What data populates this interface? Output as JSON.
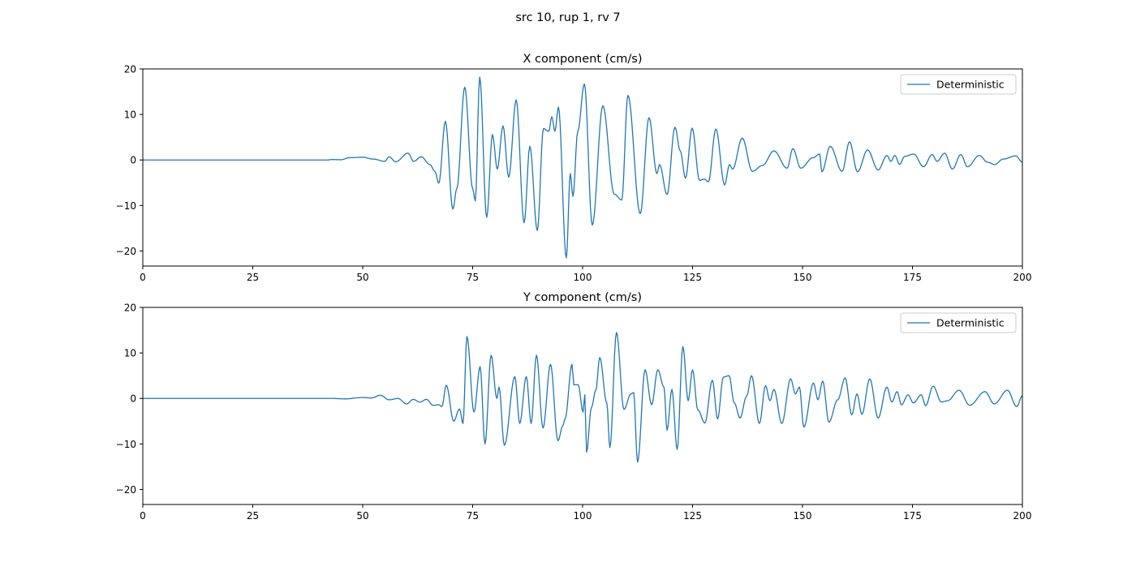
{
  "chart_data": {
    "suptitle": "src 10, rup 1, rv 7",
    "line_color": "#1f77b4",
    "subplots": [
      {
        "type": "line",
        "title": "X component (cm/s)",
        "xlim": [
          0,
          200
        ],
        "ylim": [
          -23.3,
          20
        ],
        "xticks": [
          0,
          25,
          50,
          75,
          100,
          125,
          150,
          175,
          200
        ],
        "yticks": [
          -20,
          -10,
          0,
          10,
          20
        ],
        "legend": {
          "placement": "top-right",
          "entries": [
            "Deterministic"
          ]
        },
        "series": [
          {
            "name": "Deterministic",
            "points": [
              [
                0,
                0
              ],
              [
                42,
                0
              ],
              [
                43,
                0.1
              ],
              [
                45,
                0.05
              ],
              [
                47,
                0.5
              ],
              [
                50,
                0.6
              ],
              [
                52.4,
                0.2
              ],
              [
                55,
                -0.3
              ],
              [
                56,
                0.7
              ],
              [
                57.5,
                -0.4
              ],
              [
                60.3,
                1.5
              ],
              [
                61.6,
                -0.3
              ],
              [
                63.3,
                0.7
              ],
              [
                65.3,
                -1
              ],
              [
                66.4,
                -2.5
              ],
              [
                67.3,
                -5.1
              ],
              [
                68.8,
                8.5
              ],
              [
                70.5,
                -10.8
              ],
              [
                71.4,
                -6.3
              ],
              [
                73.2,
                16
              ],
              [
                75,
                -6.3
              ],
              [
                75.6,
                -9
              ],
              [
                76.6,
                18.2
              ],
              [
                78.2,
                -12.6
              ],
              [
                79.5,
                5.6
              ],
              [
                80.6,
                -2
              ],
              [
                81.9,
                7.5
              ],
              [
                83.2,
                -3.8
              ],
              [
                84.9,
                13.2
              ],
              [
                86.7,
                -13.8
              ],
              [
                88,
                3
              ],
              [
                89.7,
                -15.5
              ],
              [
                91.1,
                6.9
              ],
              [
                92.3,
                6.3
              ],
              [
                93,
                9.5
              ],
              [
                93.7,
                6.3
              ],
              [
                94.5,
                11.6
              ],
              [
                96.3,
                -21.5
              ],
              [
                97.2,
                -3
              ],
              [
                97.8,
                -8
              ],
              [
                98.9,
                6.3
              ],
              [
                100.4,
                16.7
              ],
              [
                102.2,
                -14.3
              ],
              [
                104.6,
                11.9
              ],
              [
                107.2,
                -7.5
              ],
              [
                108.9,
                -8.8
              ],
              [
                110.3,
                14.2
              ],
              [
                113.1,
                -11.8
              ],
              [
                115.1,
                9.3
              ],
              [
                116.9,
                -3
              ],
              [
                117.5,
                -1
              ],
              [
                119.2,
                -7.6
              ],
              [
                121,
                7.2
              ],
              [
                122.2,
                2
              ],
              [
                123.4,
                -4
              ],
              [
                124.9,
                7
              ],
              [
                126.6,
                -4.5
              ],
              [
                127.7,
                -4.2
              ],
              [
                128.6,
                -4.8
              ],
              [
                130.3,
                6.8
              ],
              [
                132.3,
                -5.5
              ],
              [
                133.4,
                -1
              ],
              [
                134.1,
                -2
              ],
              [
                136.3,
                4.8
              ],
              [
                138.6,
                -2.5
              ],
              [
                140.9,
                -1.2
              ],
              [
                143.5,
                2
              ],
              [
                146.5,
                -1.8
              ],
              [
                147.8,
                2.5
              ],
              [
                149.6,
                -1.8
              ],
              [
                152.4,
                0.5
              ],
              [
                153.9,
                1.3
              ],
              [
                154.4,
                -2.6
              ],
              [
                156.3,
                3
              ],
              [
                159,
                -2.5
              ],
              [
                160.7,
                4
              ],
              [
                162.5,
                -2.6
              ],
              [
                164.8,
                2.2
              ],
              [
                167.2,
                -2.2
              ],
              [
                169.2,
                1
              ],
              [
                170.1,
                -0.3
              ],
              [
                171,
                1
              ],
              [
                172.1,
                -1
              ],
              [
                173.2,
                0.8
              ],
              [
                175.3,
                1.3
              ],
              [
                177.5,
                -1.5
              ],
              [
                179.5,
                1.2
              ],
              [
                180.6,
                -0.3
              ],
              [
                182.3,
                1.5
              ],
              [
                184.1,
                -2
              ],
              [
                186,
                1.2
              ],
              [
                187.5,
                -1.5
              ],
              [
                190.2,
                1
              ],
              [
                192.1,
                -0.5
              ],
              [
                193.7,
                -1
              ],
              [
                195.6,
                0.2
              ],
              [
                198.5,
                0.9
              ],
              [
                200,
                -0.5
              ]
            ]
          }
        ]
      },
      {
        "type": "line",
        "title": "Y component (cm/s)",
        "xlim": [
          0,
          200
        ],
        "ylim": [
          -23.3,
          20
        ],
        "xticks": [
          0,
          25,
          50,
          75,
          100,
          125,
          150,
          175,
          200
        ],
        "yticks": [
          -20,
          -10,
          0,
          10,
          20
        ],
        "legend": {
          "placement": "top-right",
          "entries": [
            "Deterministic"
          ]
        },
        "series": [
          {
            "name": "Deterministic",
            "points": [
              [
                0,
                0
              ],
              [
                43,
                0
              ],
              [
                46,
                -0.1
              ],
              [
                50,
                0.2
              ],
              [
                52,
                0.1
              ],
              [
                54,
                0.7
              ],
              [
                56,
                -0.3
              ],
              [
                58,
                0
              ],
              [
                60,
                -1.2
              ],
              [
                61.5,
                -0.2
              ],
              [
                63,
                -0.8
              ],
              [
                64.5,
                -0.2
              ],
              [
                66,
                -1.5
              ],
              [
                67.3,
                -1.4
              ],
              [
                68,
                -1.8
              ],
              [
                69,
                2.9
              ],
              [
                70.7,
                -5
              ],
              [
                72,
                -2.3
              ],
              [
                72.8,
                -5.5
              ],
              [
                73.7,
                13.6
              ],
              [
                75.3,
                -3
              ],
              [
                76.7,
                7
              ],
              [
                77.8,
                -10
              ],
              [
                79.2,
                9.5
              ],
              [
                80.5,
                0
              ],
              [
                81,
                2.5
              ],
              [
                82.2,
                -10.3
              ],
              [
                84.6,
                4.8
              ],
              [
                85.7,
                -5.5
              ],
              [
                87.2,
                4.8
              ],
              [
                88.3,
                -5.5
              ],
              [
                89.5,
                9.5
              ],
              [
                91,
                -6.5
              ],
              [
                92.7,
                7.5
              ],
              [
                94.4,
                -9.3
              ],
              [
                95.5,
                -6
              ],
              [
                96,
                -4.5
              ],
              [
                97.6,
                7.5
              ],
              [
                98,
                3
              ],
              [
                99,
                3
              ],
              [
                100.1,
                -3
              ],
              [
                100.5,
                0.8
              ],
              [
                100.9,
                -11.8
              ],
              [
                102,
                -2
              ],
              [
                103,
                1.8
              ],
              [
                103.9,
                9
              ],
              [
                105.5,
                -1
              ],
              [
                106.2,
                -10.8
              ],
              [
                107.7,
                14.5
              ],
              [
                109.4,
                -2.4
              ],
              [
                111,
                1
              ],
              [
                111.6,
                1.3
              ],
              [
                112.5,
                -14
              ],
              [
                114.2,
                6.3
              ],
              [
                115.7,
                -1.4
              ],
              [
                117.1,
                6.3
              ],
              [
                118.5,
                2.5
              ],
              [
                119.2,
                -7
              ],
              [
                120.3,
                2
              ],
              [
                121.5,
                -11.2
              ],
              [
                122.8,
                11.4
              ],
              [
                124,
                -0.5
              ],
              [
                125,
                6.3
              ],
              [
                126.2,
                -2.5
              ],
              [
                127.8,
                -5.4
              ],
              [
                129.5,
                4
              ],
              [
                130.7,
                -4.5
              ],
              [
                132,
                4.7
              ],
              [
                133.3,
                5
              ],
              [
                134.5,
                -1
              ],
              [
                135.8,
                -4.3
              ],
              [
                137.3,
                0.5
              ],
              [
                138.4,
                5
              ],
              [
                140.2,
                -5.5
              ],
              [
                141.6,
                2.8
              ],
              [
                142.6,
                -0.5
              ],
              [
                143.5,
                2
              ],
              [
                145.3,
                -5.5
              ],
              [
                147.3,
                4.3
              ],
              [
                148.4,
                1
              ],
              [
                149.3,
                2.5
              ],
              [
                150.3,
                -6.3
              ],
              [
                152.5,
                3.4
              ],
              [
                153.5,
                -0.3
              ],
              [
                154.6,
                3.8
              ],
              [
                156,
                -5.2
              ],
              [
                158,
                -0.3
              ],
              [
                159.7,
                4.5
              ],
              [
                161.2,
                -3.6
              ],
              [
                162.4,
                1
              ],
              [
                163.5,
                -3.5
              ],
              [
                165.3,
                4.3
              ],
              [
                167.2,
                -4.3
              ],
              [
                169.2,
                2.5
              ],
              [
                170.3,
                -0.8
              ],
              [
                171.5,
                1.5
              ],
              [
                172.5,
                -1.4
              ],
              [
                174,
                0.8
              ],
              [
                175.2,
                -1
              ],
              [
                177,
                0.8
              ],
              [
                178,
                -1.6
              ],
              [
                179.7,
                2.7
              ],
              [
                181.6,
                -0.8
              ],
              [
                183,
                -0.5
              ],
              [
                185.6,
                1.8
              ],
              [
                188,
                -1.5
              ],
              [
                191.5,
                1.5
              ],
              [
                193.6,
                -1.2
              ],
              [
                196.6,
                1.8
              ],
              [
                198.7,
                -1.8
              ],
              [
                200,
                0.6
              ]
            ]
          }
        ]
      }
    ]
  }
}
